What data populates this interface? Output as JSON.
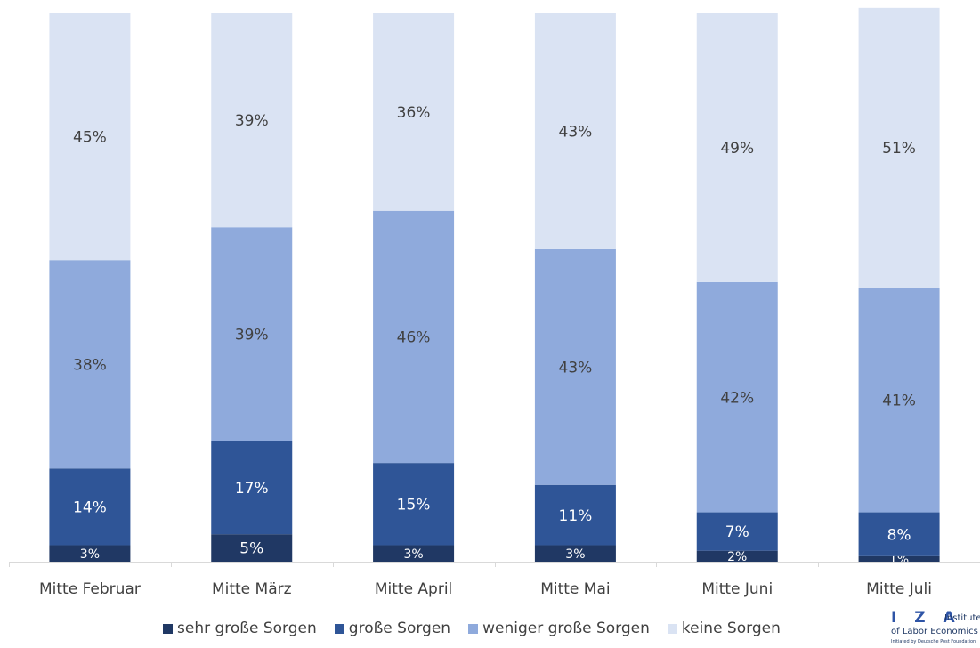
{
  "chart_data": {
    "type": "bar",
    "stacked": true,
    "categories": [
      "Mitte Februar",
      "Mitte März",
      "Mitte April",
      "Mitte Mai",
      "Mitte Juni",
      "Mitte Juli"
    ],
    "series": [
      {
        "name": "sehr große Sorgen",
        "values": [
          3,
          5,
          3,
          3,
          2,
          1
        ],
        "color": "#203864"
      },
      {
        "name": "große Sorgen",
        "values": [
          14,
          17,
          15,
          11,
          7,
          8
        ],
        "color": "#2f5597"
      },
      {
        "name": "weniger große Sorgen",
        "values": [
          38,
          39,
          46,
          43,
          42,
          41
        ],
        "color": "#8faadc"
      },
      {
        "name": "keine Sorgen",
        "values": [
          45,
          39,
          36,
          43,
          49,
          51
        ],
        "color": "#dae3f3"
      }
    ],
    "value_suffix": "%",
    "ylim": [
      0,
      100
    ],
    "grid": false,
    "legend_position": "bottom"
  },
  "logo": {
    "letters": "I Z A",
    "line1": "Institute",
    "line2": "of Labor Economics",
    "line3": "Initiated by Deutsche Post Foundation"
  }
}
